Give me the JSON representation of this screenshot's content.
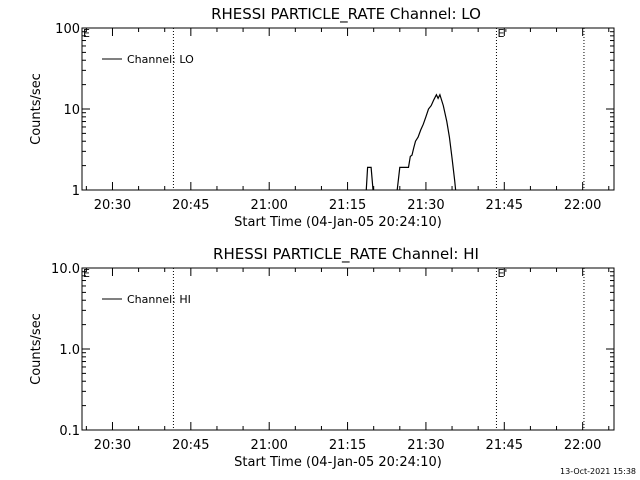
{
  "footer": {
    "timestamp": "13-Oct-2021 15:38"
  },
  "chart_data": [
    {
      "type": "line",
      "title": "RHESSI PARTICLE_RATE Channel: LO",
      "xlabel": "Start Time (04-Jan-05 20:24:10)",
      "ylabel": "Counts/sec",
      "y_scale": "log",
      "ylim": [
        1,
        100
      ],
      "y_ticks": [
        1,
        10,
        100
      ],
      "y_tick_labels": [
        "1",
        "10",
        "100"
      ],
      "xlim": [
        "20:24:10",
        "22:06:00"
      ],
      "x_ticks": [
        "20:30",
        "20:45",
        "21:00",
        "21:15",
        "21:30",
        "21:45",
        "22:00"
      ],
      "grid": false,
      "legend_position": "top-left",
      "vertical_markers": [
        {
          "time": "20:41:40",
          "flag": "E"
        },
        {
          "time": "21:43:30",
          "flag": "E'"
        },
        {
          "time": "22:00:15",
          "flag": ""
        }
      ],
      "series": [
        {
          "name": "Channel: LO",
          "color": "#000000",
          "points": [
            {
              "x": "21:18:30",
              "y": 0.8
            },
            {
              "x": "21:18:50",
              "y": 1.9
            },
            {
              "x": "21:19:30",
              "y": 1.9
            },
            {
              "x": "21:20:00",
              "y": 0.8
            },
            {
              "x": "21:24:20",
              "y": 0.8
            },
            {
              "x": "21:25:00",
              "y": 1.9
            },
            {
              "x": "21:26:40",
              "y": 1.9
            },
            {
              "x": "21:27:00",
              "y": 2.6
            },
            {
              "x": "21:27:20",
              "y": 2.7
            },
            {
              "x": "21:27:40",
              "y": 3.3
            },
            {
              "x": "21:28:00",
              "y": 4.0
            },
            {
              "x": "21:28:30",
              "y": 4.5
            },
            {
              "x": "21:29:00",
              "y": 5.5
            },
            {
              "x": "21:29:30",
              "y": 6.5
            },
            {
              "x": "21:30:00",
              "y": 8.0
            },
            {
              "x": "21:30:30",
              "y": 10.0
            },
            {
              "x": "21:31:00",
              "y": 11.0
            },
            {
              "x": "21:31:30",
              "y": 13.0
            },
            {
              "x": "21:32:00",
              "y": 15.0
            },
            {
              "x": "21:32:20",
              "y": 13.5
            },
            {
              "x": "21:32:40",
              "y": 15.0
            },
            {
              "x": "21:33:20",
              "y": 11.0
            },
            {
              "x": "21:34:00",
              "y": 7.0
            },
            {
              "x": "21:34:30",
              "y": 4.5
            },
            {
              "x": "21:35:00",
              "y": 2.5
            },
            {
              "x": "21:35:30",
              "y": 1.3
            },
            {
              "x": "21:35:50",
              "y": 0.8
            }
          ]
        }
      ]
    },
    {
      "type": "line",
      "title": "RHESSI PARTICLE_RATE Channel: HI",
      "xlabel": "Start Time (04-Jan-05 20:24:10)",
      "ylabel": "Counts/sec",
      "y_scale": "log",
      "ylim": [
        0.1,
        10
      ],
      "y_ticks": [
        0.1,
        1,
        10
      ],
      "y_tick_labels": [
        "0.1",
        "1.0",
        "10.0"
      ],
      "xlim": [
        "20:24:10",
        "22:06:00"
      ],
      "x_ticks": [
        "20:30",
        "20:45",
        "21:00",
        "21:15",
        "21:30",
        "21:45",
        "22:00"
      ],
      "grid": false,
      "legend_position": "top-left",
      "vertical_markers": [
        {
          "time": "20:41:40",
          "flag": "E"
        },
        {
          "time": "21:43:30",
          "flag": "E'"
        },
        {
          "time": "22:00:15",
          "flag": ""
        }
      ],
      "series": [
        {
          "name": "Channel: HI",
          "color": "#000000",
          "points": []
        }
      ]
    }
  ]
}
